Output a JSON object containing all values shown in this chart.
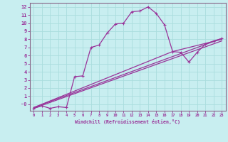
{
  "bg_color": "#c8eef0",
  "line_color": "#993399",
  "grid_color": "#aadddd",
  "spine_color": "#886688",
  "xlabel": "Windchill (Refroidissement éolien,°C)",
  "xlim": [
    -0.5,
    23.5
  ],
  "ylim": [
    -0.8,
    12.5
  ],
  "xticks": [
    0,
    1,
    2,
    3,
    4,
    5,
    6,
    7,
    8,
    9,
    10,
    11,
    12,
    13,
    14,
    15,
    16,
    17,
    18,
    19,
    20,
    21,
    22,
    23
  ],
  "yticks": [
    0,
    1,
    2,
    3,
    4,
    5,
    6,
    7,
    8,
    9,
    10,
    11,
    12
  ],
  "ytick_labels": [
    "-0",
    "1",
    "2",
    "3",
    "4",
    "5",
    "6",
    "7",
    "8",
    "9",
    "10",
    "11",
    "12"
  ],
  "curve1_x": [
    0,
    1,
    2,
    3,
    4,
    5,
    6,
    7,
    8,
    9,
    10,
    11,
    12,
    13,
    14,
    15,
    16,
    17,
    18,
    19,
    20,
    21,
    22,
    23
  ],
  "curve1_y": [
    -0.5,
    -0.2,
    -0.5,
    -0.3,
    -0.4,
    3.4,
    3.5,
    7.0,
    7.3,
    8.8,
    9.9,
    10.0,
    11.4,
    11.5,
    12.0,
    11.2,
    9.8,
    6.5,
    6.4,
    5.2,
    6.4,
    7.4,
    7.8,
    8.1
  ],
  "curve2_x": [
    0,
    23
  ],
  "curve2_y": [
    -0.4,
    8.1
  ],
  "curve3_x": [
    0,
    23
  ],
  "curve3_y": [
    -0.5,
    7.8
  ],
  "curve4_x": [
    0,
    17,
    23
  ],
  "curve4_y": [
    -0.4,
    6.5,
    8.0
  ]
}
